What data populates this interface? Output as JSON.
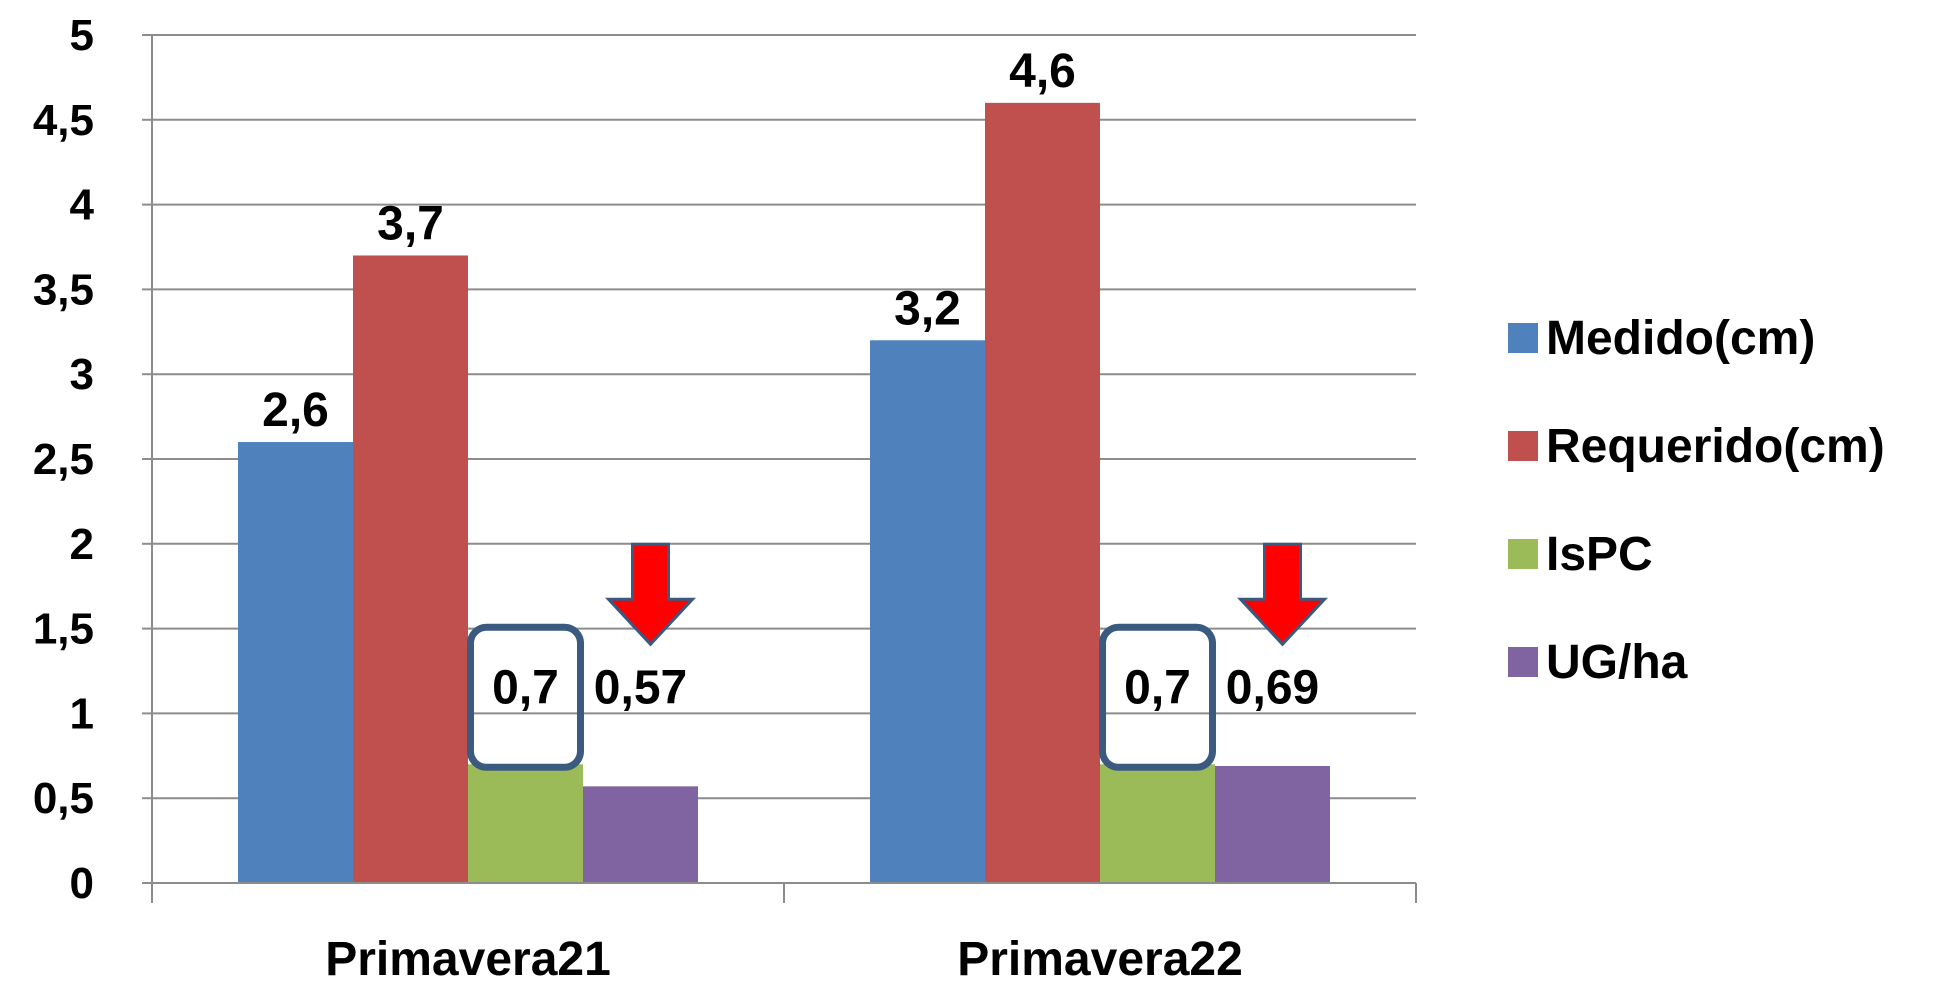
{
  "chart_data": {
    "type": "bar",
    "categories": [
      "Primavera21",
      "Primavera22"
    ],
    "series": [
      {
        "name": "Medido(cm)",
        "values": [
          2.6,
          3.2
        ],
        "labels": [
          "2,6",
          "3,2"
        ],
        "color": "#4F81BD"
      },
      {
        "name": "Requerido(cm)",
        "values": [
          3.7,
          4.6
        ],
        "labels": [
          "3,7",
          "4,6"
        ],
        "color": "#C0504D"
      },
      {
        "name": "IsPC",
        "values": [
          0.7,
          0.7
        ],
        "labels": [
          "0,7",
          "0,7"
        ],
        "color": "#9BBB59"
      },
      {
        "name": "UG/ha",
        "values": [
          0.57,
          0.69
        ],
        "labels": [
          "0,57",
          "0,69"
        ],
        "color": "#8064A2"
      }
    ],
    "ylim": [
      0,
      5
    ],
    "yticks": [
      0,
      0.5,
      1,
      1.5,
      2,
      2.5,
      3,
      3.5,
      4,
      4.5,
      5
    ],
    "ytick_labels": [
      "0",
      "0,5",
      "1",
      "1,5",
      "2",
      "2,5",
      "3",
      "3,5",
      "4",
      "4,5",
      "5"
    ],
    "grid": true,
    "legend": "right",
    "annotations": {
      "highlight_box_series": "IsPC",
      "highlight_box_color": "#3A5A80",
      "arrow_series": "UG/ha",
      "arrow_color": "#FF0000",
      "arrow_outline": "#3A5A80"
    }
  }
}
